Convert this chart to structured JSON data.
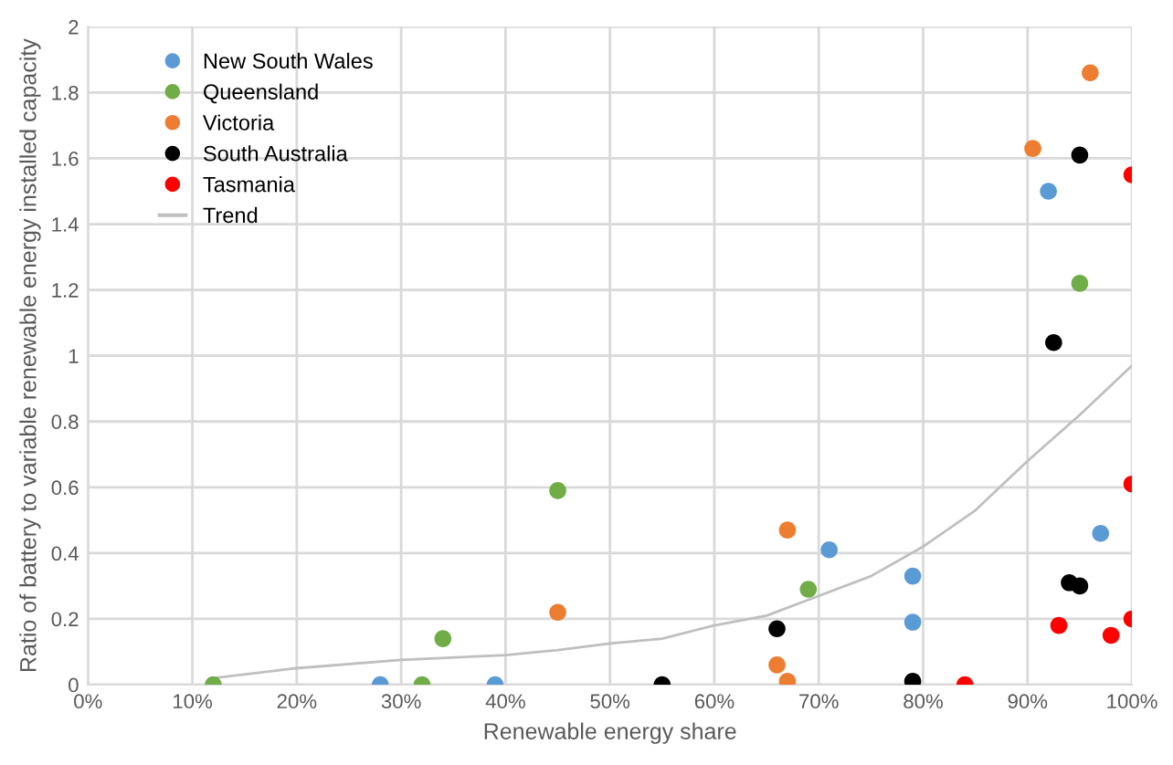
{
  "chart_data": {
    "type": "scatter",
    "xlabel": "Renewable energy share",
    "ylabel": "Ratio of battery to variable renewable energy installed capacity",
    "xlim": [
      0,
      100
    ],
    "xticks": [
      {
        "value": 0,
        "label": "0%"
      },
      {
        "value": 10,
        "label": "10%"
      },
      {
        "value": 20,
        "label": "20%"
      },
      {
        "value": 30,
        "label": "30%"
      },
      {
        "value": 40,
        "label": "40%"
      },
      {
        "value": 50,
        "label": "50%"
      },
      {
        "value": 60,
        "label": "60%"
      },
      {
        "value": 70,
        "label": "70%"
      },
      {
        "value": 80,
        "label": "80%"
      },
      {
        "value": 90,
        "label": "90%"
      },
      {
        "value": 100,
        "label": "100%"
      }
    ],
    "ylim": [
      0,
      2
    ],
    "yticks": [
      0,
      0.2,
      0.4,
      0.6,
      0.8,
      1,
      1.2,
      1.4,
      1.6,
      1.8,
      2
    ],
    "grid": true,
    "legend": "top left",
    "marker": "circle",
    "series": [
      {
        "name": "New South Wales",
        "color": "#5b9bd5",
        "x": [
          28,
          39,
          71,
          79,
          79,
          92,
          97
        ],
        "values": [
          0,
          0,
          0.41,
          0.33,
          0.19,
          1.5,
          0.46
        ]
      },
      {
        "name": "Queensland",
        "color": "#70ad47",
        "x": [
          12,
          32,
          34,
          45,
          69,
          95
        ],
        "values": [
          0,
          0,
          0.14,
          0.59,
          0.29,
          1.22
        ]
      },
      {
        "name": "Victoria",
        "color": "#ed7d31",
        "x": [
          45,
          66,
          67,
          67,
          90.5,
          96
        ],
        "values": [
          0.22,
          0.06,
          0.01,
          0.47,
          1.63,
          1.86
        ]
      },
      {
        "name": "South Australia",
        "color": "#000000",
        "x": [
          55,
          66,
          79,
          92.5,
          95,
          94,
          95
        ],
        "values": [
          0,
          0.17,
          0.01,
          1.04,
          1.61,
          0.31,
          0.3
        ]
      },
      {
        "name": "Tasmania",
        "color": "#ff0000",
        "x": [
          84,
          93,
          98,
          100,
          100,
          100
        ],
        "values": [
          0,
          0.18,
          0.15,
          0.2,
          0.61,
          1.55
        ]
      },
      {
        "name": "Trend",
        "type": "line",
        "marker": "none",
        "color": "#bfbfbf",
        "x": [
          12,
          20,
          30,
          40,
          45,
          50,
          55,
          60,
          65,
          70,
          75,
          80,
          85,
          90,
          95,
          100
        ],
        "values": [
          0.02,
          0.05,
          0.075,
          0.09,
          0.105,
          0.125,
          0.14,
          0.18,
          0.21,
          0.27,
          0.33,
          0.42,
          0.53,
          0.68,
          0.82,
          0.97
        ]
      }
    ]
  }
}
